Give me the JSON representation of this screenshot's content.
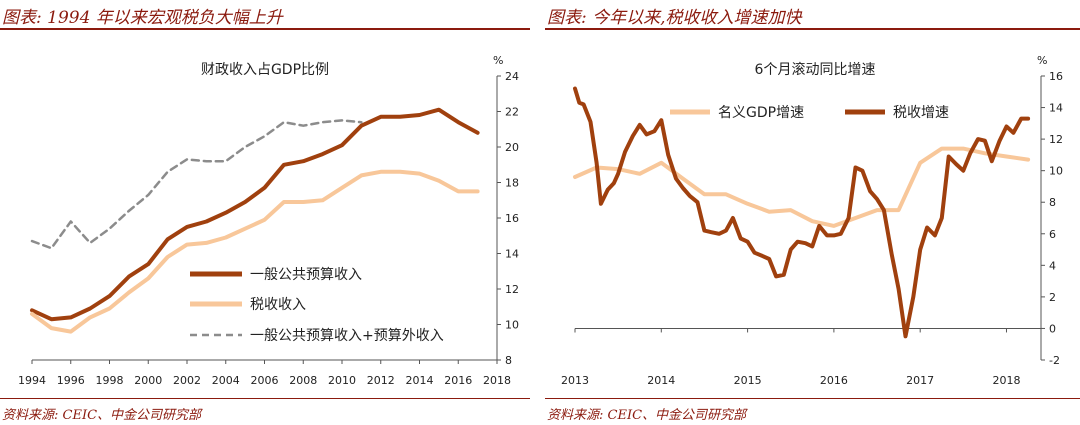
{
  "chart_data": [
    {
      "type": "line",
      "panel_title": "图表: 1994 年以来宏观税负大幅上升",
      "title": "财政收入占GDP比例",
      "source": "资料来源: CEIC、中金公司研究部",
      "ylabel": "%",
      "ylim": [
        8,
        24
      ],
      "xlim": [
        1994,
        2018
      ],
      "x_ticks": [
        "1994",
        "1996",
        "1998",
        "2000",
        "2002",
        "2004",
        "2006",
        "2008",
        "2010",
        "2012",
        "2014",
        "2016",
        "2018"
      ],
      "y_ticks": [
        "8",
        "10",
        "12",
        "14",
        "16",
        "18",
        "20",
        "22",
        "24"
      ],
      "legend_position": "lower-right",
      "grid": false,
      "series": [
        {
          "name": "一般公共预算收入",
          "color": "#a0400e",
          "style": "solid-thick",
          "x": [
            1994,
            1995,
            1996,
            1997,
            1998,
            1999,
            2000,
            2001,
            2002,
            2003,
            2004,
            2005,
            2006,
            2007,
            2008,
            2009,
            2010,
            2011,
            2012,
            2013,
            2014,
            2015,
            2016,
            2017
          ],
          "values": [
            10.8,
            10.3,
            10.4,
            10.9,
            11.6,
            12.7,
            13.4,
            14.8,
            15.5,
            15.8,
            16.3,
            16.9,
            17.7,
            19.0,
            19.2,
            19.6,
            20.1,
            21.2,
            21.7,
            21.7,
            21.8,
            22.1,
            21.4,
            20.8
          ]
        },
        {
          "name": "税收收入",
          "color": "#f8c79a",
          "style": "solid-thick",
          "x": [
            1994,
            1995,
            1996,
            1997,
            1998,
            1999,
            2000,
            2001,
            2002,
            2003,
            2004,
            2005,
            2006,
            2007,
            2008,
            2009,
            2010,
            2011,
            2012,
            2013,
            2014,
            2015,
            2016,
            2017
          ],
          "values": [
            10.6,
            9.8,
            9.6,
            10.4,
            10.9,
            11.8,
            12.6,
            13.8,
            14.5,
            14.6,
            14.9,
            15.4,
            15.9,
            16.9,
            16.9,
            17.0,
            17.7,
            18.4,
            18.6,
            18.6,
            18.5,
            18.1,
            17.5,
            17.5
          ]
        },
        {
          "name": "一般公共预算收入+预算外收入",
          "color": "#8c8c8c",
          "style": "dashed",
          "x": [
            1994,
            1995,
            1996,
            1997,
            1998,
            1999,
            2000,
            2001,
            2002,
            2003,
            2004,
            2005,
            2006,
            2007,
            2008,
            2009,
            2010,
            2011
          ],
          "values": [
            14.7,
            14.3,
            15.8,
            14.6,
            15.4,
            16.4,
            17.3,
            18.6,
            19.3,
            19.2,
            19.2,
            20.0,
            20.6,
            21.4,
            21.2,
            21.4,
            21.5,
            21.4
          ]
        }
      ]
    },
    {
      "type": "line",
      "panel_title": "图表: 今年以来,税收收入增速加快",
      "title": "6个月滚动同比增速",
      "source": "资料来源: CEIC、中金公司研究部",
      "ylabel": "%",
      "ylim": [
        -2,
        16
      ],
      "xlim": [
        2013,
        2018.4
      ],
      "x_ticks": [
        "2013",
        "2014",
        "2015",
        "2016",
        "2017",
        "2018"
      ],
      "y_ticks": [
        "-2",
        "0",
        "2",
        "4",
        "6",
        "8",
        "10",
        "12",
        "14",
        "16"
      ],
      "legend_position": "top",
      "grid": false,
      "series": [
        {
          "name": "名义GDP增速",
          "color": "#f8c79a",
          "style": "solid-thick",
          "x": [
            2013.0,
            2013.25,
            2013.5,
            2013.75,
            2014.0,
            2014.25,
            2014.5,
            2014.75,
            2015.0,
            2015.25,
            2015.5,
            2015.75,
            2016.0,
            2016.25,
            2016.5,
            2016.75,
            2017.0,
            2017.25,
            2017.5,
            2017.75,
            2018.0,
            2018.25
          ],
          "values": [
            9.6,
            10.2,
            10.1,
            9.8,
            10.5,
            9.5,
            8.5,
            8.5,
            7.9,
            7.4,
            7.5,
            6.8,
            6.5,
            7.0,
            7.5,
            7.5,
            10.5,
            11.4,
            11.4,
            11.1,
            10.9,
            10.7
          ]
        },
        {
          "name": "税收增速",
          "color": "#a0400e",
          "style": "solid-thick",
          "x": [
            2013.0,
            2013.05,
            2013.1,
            2013.18,
            2013.25,
            2013.3,
            2013.38,
            2013.45,
            2013.5,
            2013.58,
            2013.67,
            2013.75,
            2013.83,
            2013.92,
            2014.0,
            2014.08,
            2014.17,
            2014.25,
            2014.33,
            2014.42,
            2014.5,
            2014.58,
            2014.67,
            2014.75,
            2014.83,
            2014.92,
            2015.0,
            2015.08,
            2015.17,
            2015.25,
            2015.33,
            2015.42,
            2015.5,
            2015.58,
            2015.67,
            2015.75,
            2015.83,
            2015.92,
            2016.0,
            2016.08,
            2016.17,
            2016.25,
            2016.33,
            2016.42,
            2016.5,
            2016.58,
            2016.67,
            2016.75,
            2016.83,
            2016.92,
            2017.0,
            2017.08,
            2017.17,
            2017.25,
            2017.33,
            2017.42,
            2017.5,
            2017.58,
            2017.67,
            2017.75,
            2017.83,
            2017.92,
            2018.0,
            2018.08,
            2018.17,
            2018.25
          ],
          "values": [
            15.2,
            14.3,
            14.2,
            13.1,
            10.5,
            7.9,
            8.8,
            9.2,
            9.8,
            11.2,
            12.2,
            12.9,
            12.3,
            12.5,
            13.2,
            11.0,
            9.5,
            8.9,
            8.4,
            8.0,
            6.2,
            6.1,
            6.0,
            6.2,
            7.0,
            5.7,
            5.5,
            4.8,
            4.6,
            4.4,
            3.3,
            3.4,
            5.0,
            5.5,
            5.4,
            5.2,
            6.5,
            5.9,
            5.9,
            6.0,
            7.0,
            10.2,
            10.0,
            8.7,
            8.2,
            7.5,
            4.7,
            2.5,
            -0.5,
            2.0,
            5.0,
            6.4,
            5.9,
            7.0,
            10.9,
            10.4,
            10.0,
            11.1,
            12.0,
            11.9,
            10.6,
            11.9,
            12.8,
            12.4,
            13.3,
            13.3
          ]
        }
      ]
    }
  ]
}
